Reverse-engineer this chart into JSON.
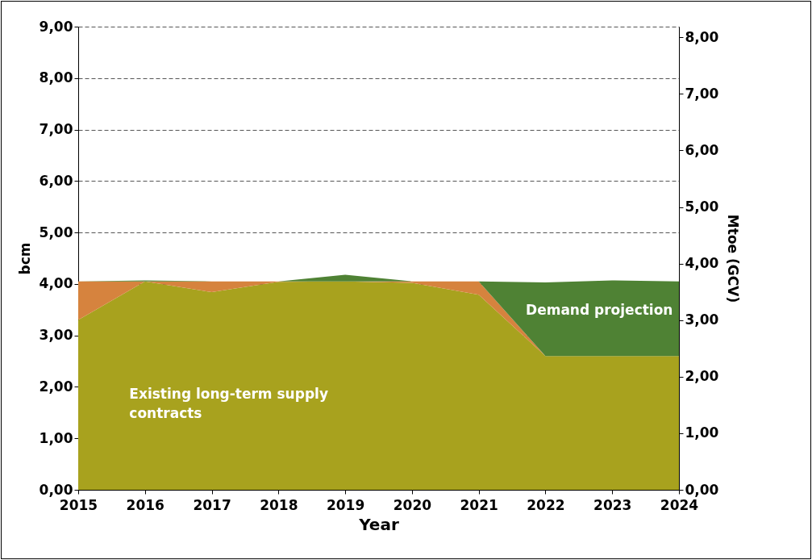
{
  "chart_data": {
    "type": "area",
    "stacked": true,
    "xlabel": "Year",
    "ylabel": "bcm",
    "y2label": "Mtoe (GCV)",
    "categories": [
      "2015",
      "2016",
      "2017",
      "2018",
      "2019",
      "2020",
      "2021",
      "2022",
      "2023",
      "2024"
    ],
    "series": [
      {
        "name": "Existing long-term supply contracts",
        "color": "#a8a21e",
        "values": [
          3.3,
          4.05,
          3.84,
          4.04,
          4.05,
          4.02,
          3.79,
          2.6,
          2.6,
          2.6
        ]
      },
      {
        "color": "#d6833e",
        "values": [
          0.75,
          0,
          0.21,
          0.01,
          0,
          0.03,
          0.26,
          0,
          0,
          0
        ]
      },
      {
        "name": "Demand projection",
        "color": "#4f8234",
        "values": [
          0,
          0.02,
          0,
          0,
          0.13,
          0,
          0,
          1.43,
          1.47,
          1.45
        ]
      }
    ],
    "ylim": [
      0,
      9
    ],
    "yticks": [
      {
        "value": 0,
        "label": "0,00"
      },
      {
        "value": 1,
        "label": "1,00"
      },
      {
        "value": 2,
        "label": "2,00"
      },
      {
        "value": 3,
        "label": "3,00"
      },
      {
        "value": 4,
        "label": "4,00"
      },
      {
        "value": 5,
        "label": "5,00"
      },
      {
        "value": 6,
        "label": "6,00"
      },
      {
        "value": 7,
        "label": "7,00"
      },
      {
        "value": 8,
        "label": "8,00"
      },
      {
        "value": 9,
        "label": "9,00"
      }
    ],
    "y2lim": [
      0,
      8.19
    ],
    "y2ticks": [
      {
        "value": 0,
        "label": "0,00"
      },
      {
        "value": 1,
        "label": "1,00"
      },
      {
        "value": 2,
        "label": "2,00"
      },
      {
        "value": 3,
        "label": "3,00"
      },
      {
        "value": 4,
        "label": "4,00"
      },
      {
        "value": 5,
        "label": "5,00"
      },
      {
        "value": 6,
        "label": "6,00"
      },
      {
        "value": 7,
        "label": "7,00"
      },
      {
        "value": 8,
        "label": "8,00"
      }
    ],
    "grid": "y",
    "legend": false
  }
}
